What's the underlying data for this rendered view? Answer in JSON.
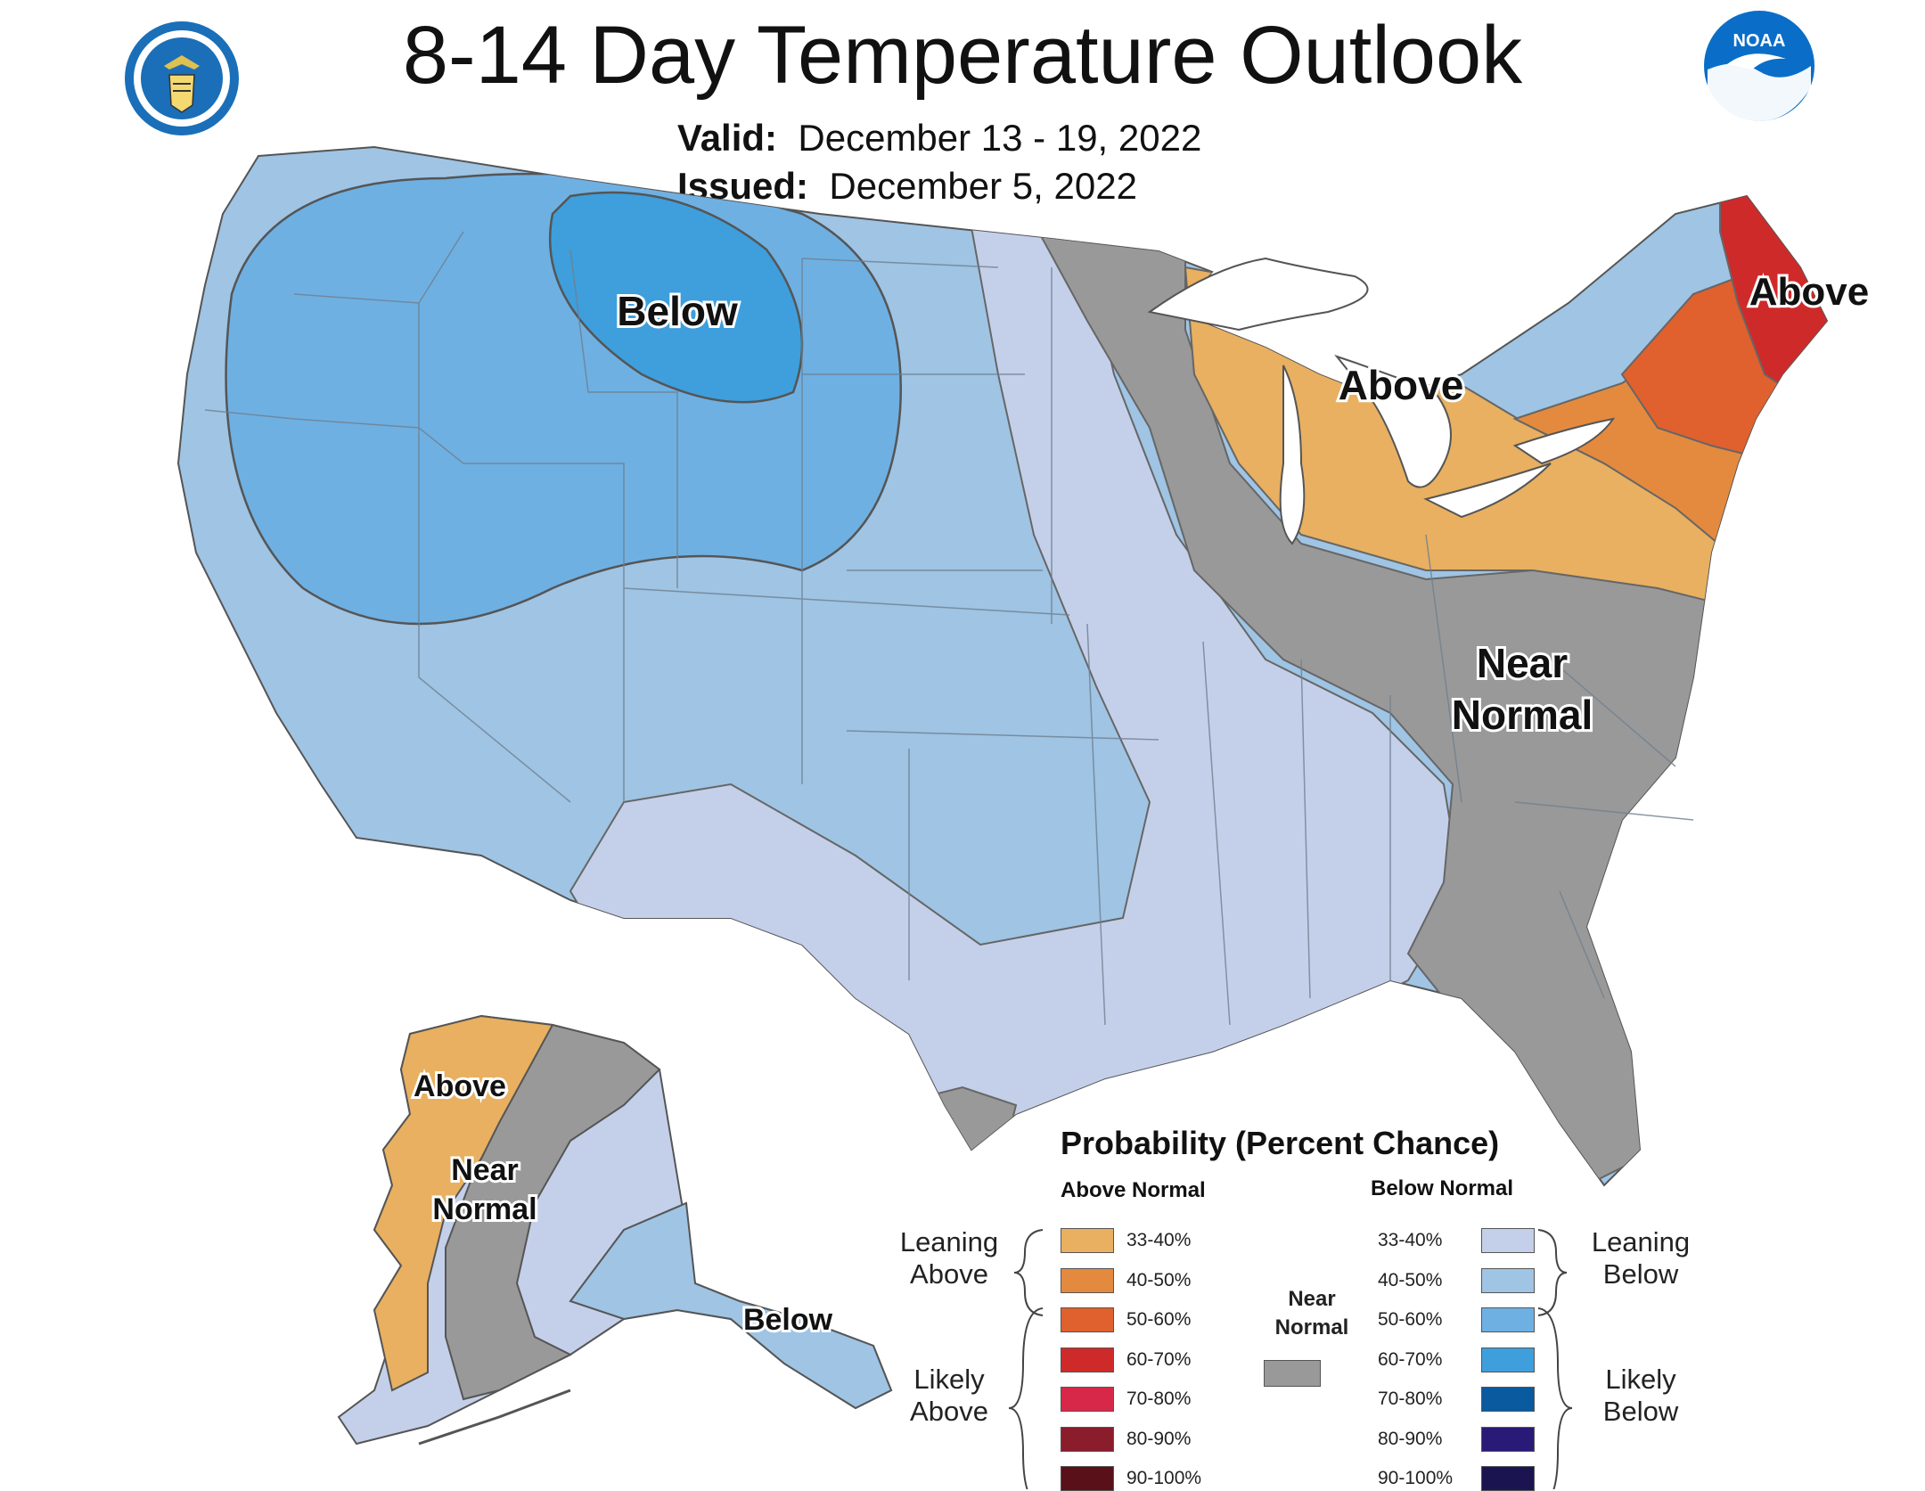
{
  "header": {
    "title": "8-14 Day Temperature Outlook",
    "valid_label": "Valid:",
    "valid_value": "December 13 - 19, 2022",
    "issued_label": "Issued:",
    "issued_value": "December 5, 2022",
    "noaa_logo_text": "NOAA"
  },
  "map_labels": {
    "below_northwest": "Below",
    "above_great_lakes": "Above",
    "above_northeast": "Above",
    "near_normal_east_1": "Near",
    "near_normal_east_2": "Normal",
    "alaska_above": "Above",
    "alaska_near_1": "Near",
    "alaska_near_2": "Normal",
    "alaska_below": "Below"
  },
  "legend": {
    "title": "Probability (Percent Chance)",
    "above_header": "Above Normal",
    "below_header": "Below Normal",
    "leaning_above_1": "Leaning",
    "leaning_above_2": "Above",
    "likely_above_1": "Likely",
    "likely_above_2": "Above",
    "leaning_below_1": "Leaning",
    "leaning_below_2": "Below",
    "likely_below_1": "Likely",
    "likely_below_2": "Below",
    "near_1": "Near",
    "near_2": "Normal",
    "near_color": "#999999",
    "above": [
      {
        "range": "33-40%",
        "color": "#e8b060"
      },
      {
        "range": "40-50%",
        "color": "#e48a3e"
      },
      {
        "range": "50-60%",
        "color": "#e0602e"
      },
      {
        "range": "60-70%",
        "color": "#cf2a2a"
      },
      {
        "range": "70-80%",
        "color": "#d8284a"
      },
      {
        "range": "80-90%",
        "color": "#8a1c2c"
      },
      {
        "range": "90-100%",
        "color": "#5a1018"
      }
    ],
    "below": [
      {
        "range": "33-40%",
        "color": "#c4d0ea"
      },
      {
        "range": "40-50%",
        "color": "#9fc4e4"
      },
      {
        "range": "50-60%",
        "color": "#6fb0e2"
      },
      {
        "range": "60-70%",
        "color": "#3e9fdc"
      },
      {
        "range": "70-80%",
        "color": "#0a5aa0"
      },
      {
        "range": "80-90%",
        "color": "#2a1a78"
      },
      {
        "range": "90-100%",
        "color": "#1a1450"
      }
    ]
  }
}
